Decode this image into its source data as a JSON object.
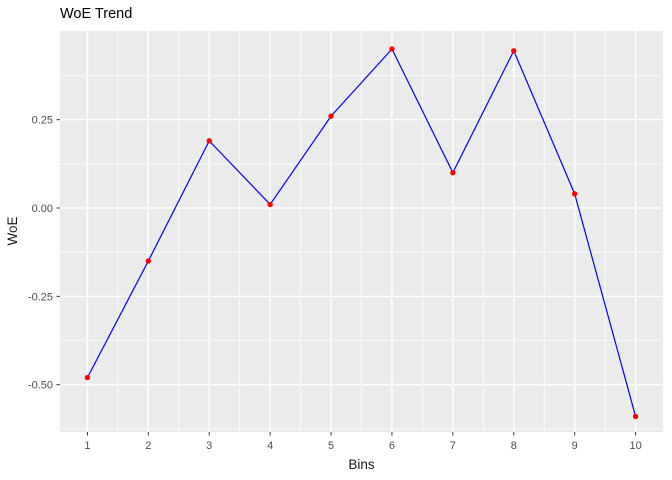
{
  "chart_data": {
    "type": "line",
    "title": "WoE Trend",
    "xlabel": "Bins",
    "ylabel": "WoE",
    "legend": "none",
    "grid": true,
    "x": [
      1,
      2,
      3,
      4,
      5,
      6,
      7,
      8,
      9,
      10
    ],
    "y": [
      -0.48,
      -0.15,
      0.19,
      0.01,
      0.26,
      0.45,
      0.1,
      0.445,
      0.04,
      -0.59
    ],
    "xlim": [
      0.55,
      10.45
    ],
    "ylim": [
      -0.634,
      0.501
    ],
    "x_ticks": [
      {
        "v": 1,
        "label": "1"
      },
      {
        "v": 2,
        "label": "2"
      },
      {
        "v": 3,
        "label": "3"
      },
      {
        "v": 4,
        "label": "4"
      },
      {
        "v": 5,
        "label": "5"
      },
      {
        "v": 6,
        "label": "6"
      },
      {
        "v": 7,
        "label": "7"
      },
      {
        "v": 8,
        "label": "8"
      },
      {
        "v": 9,
        "label": "9"
      },
      {
        "v": 10,
        "label": "10"
      }
    ],
    "y_ticks": [
      {
        "v": 0.25,
        "label": "0.25"
      },
      {
        "v": 0.0,
        "label": "0.00"
      },
      {
        "v": -0.25,
        "label": "-0.25"
      },
      {
        "v": -0.5,
        "label": "-0.50"
      }
    ],
    "x_minor": [
      1.5,
      2.5,
      3.5,
      4.5,
      5.5,
      6.5,
      7.5,
      8.5,
      9.5
    ],
    "y_minor": [
      0.375,
      0.125,
      -0.125,
      -0.375,
      -0.625
    ],
    "colors": {
      "line": "#0000FF",
      "point": "#FF0000",
      "panel_bg": "#EBEBEB",
      "grid_major": "#FFFFFF",
      "grid_minor": "#FFFFFF",
      "tick_mark": "#333333",
      "tick_text": "#4D4D4D",
      "axis_title_text": "#1A1A1A",
      "title_text": "#000000",
      "background": "#FFFFFF"
    }
  }
}
